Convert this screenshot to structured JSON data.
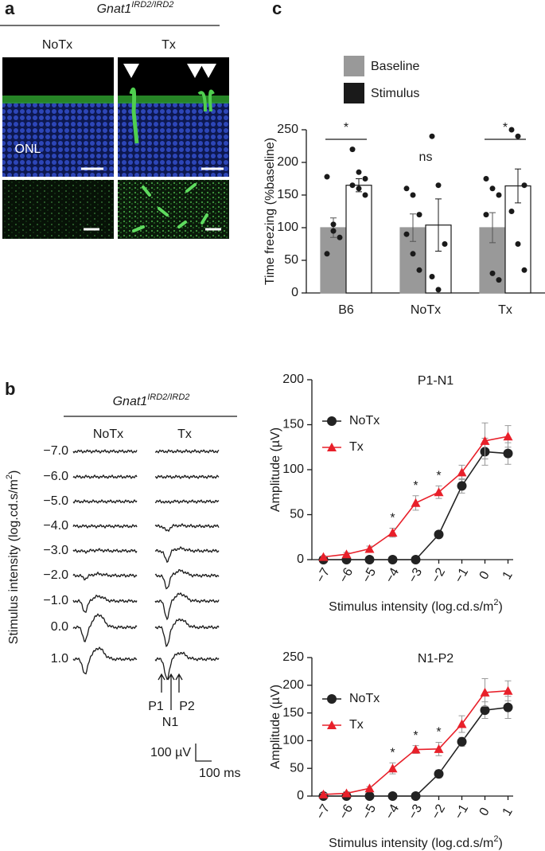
{
  "panels": {
    "a": {
      "label": "a",
      "gene": "Gnat1",
      "genotype": "IRD2/IRD2",
      "conditions": [
        "NoTx",
        "Tx"
      ],
      "layer": "ONL"
    },
    "b": {
      "label": "b",
      "gene": "Gnat1",
      "genotype": "IRD2/IRD2",
      "conditions": [
        "NoTx",
        "Tx"
      ],
      "intensities": [
        "−7.0",
        "−6.0",
        "−5.0",
        "−4.0",
        "−3.0",
        "−2.0",
        "−1.0",
        "0.0",
        "1.0"
      ],
      "ylabel": "Stimulus intensity (log.cd.s/m",
      "ylabel_sup": "2",
      "ylabel_end": ")",
      "peaks": [
        "P1",
        "N1",
        "P2"
      ],
      "scale_amplitude": "100 µV",
      "scale_time": "100 ms"
    },
    "c": {
      "label": "c"
    }
  },
  "chart_data": [
    {
      "type": "bar",
      "ylabel": "Time freezing (%baseline)",
      "categories": [
        "B6",
        "NoTx",
        "Tx"
      ],
      "series": [
        {
          "name": "Baseline",
          "color": "#999999",
          "values": [
            100,
            100,
            100
          ],
          "errors": [
            15,
            21,
            23
          ],
          "points": [
            [
              178,
              105,
              85,
              60,
              95
            ],
            [
              160,
              150,
              120,
              90,
              60,
              35
            ],
            [
              175,
              160,
              150,
              120,
              30,
              20
            ]
          ]
        },
        {
          "name": "Stimulus",
          "color": "#1a1a1a",
          "fill": "#ffffff",
          "values": [
            165,
            104,
            164
          ],
          "errors": [
            10,
            40,
            26
          ],
          "points": [
            [
              220,
              185,
              175,
              165,
              160,
              150
            ],
            [
              240,
              165,
              75,
              25,
              5
            ],
            [
              250,
              240,
              165,
              125,
              75,
              35
            ]
          ]
        }
      ],
      "ylim": [
        0,
        250
      ],
      "yticks": [
        0,
        50,
        100,
        150,
        200,
        250
      ],
      "significance": [
        {
          "label": "*",
          "bracket": true
        },
        {
          "label": "ns",
          "bracket": false
        },
        {
          "label": "*",
          "bracket": true
        }
      ]
    },
    {
      "type": "line",
      "title": "P1-N1",
      "ylabel": "Amplitude (µV)",
      "xlabel": "Stimulus intensity (log.cd.s/m",
      "xlabel_sup": "2",
      "xlabel_end": ")",
      "x": [
        -7,
        -6,
        -5,
        -4,
        -3,
        -2,
        -1,
        0,
        1
      ],
      "series": [
        {
          "name": "NoTx",
          "color": "#222222",
          "marker": "circle",
          "values": [
            0,
            0,
            0,
            0,
            0,
            28,
            82,
            120,
            118
          ],
          "errors": [
            0,
            0,
            0,
            0,
            0,
            3,
            8,
            15,
            12
          ]
        },
        {
          "name": "Tx",
          "color": "#e8202a",
          "marker": "triangle",
          "values": [
            3,
            6,
            12,
            30,
            63,
            75,
            97,
            132,
            137
          ],
          "errors": [
            1,
            2,
            3,
            5,
            8,
            7,
            8,
            20,
            12
          ]
        }
      ],
      "xlim": [
        -7.5,
        1.5
      ],
      "xticks": [
        {
          "value": -7,
          "label": "−7"
        },
        {
          "value": -6,
          "label": "−6"
        },
        {
          "value": -5,
          "label": "−5"
        },
        {
          "value": -4,
          "label": "−4"
        },
        {
          "value": -3,
          "label": "−3"
        },
        {
          "value": -2,
          "label": "−2"
        },
        {
          "value": -1,
          "label": "−1"
        },
        0,
        1
      ],
      "ylim": [
        0,
        200
      ],
      "yticks": [
        0,
        50,
        100,
        150,
        200
      ],
      "significance": [
        null,
        null,
        null,
        "*",
        "*",
        "*",
        null,
        null,
        null
      ]
    },
    {
      "type": "line",
      "title": "N1-P2",
      "ylabel": "Amplitude (µV)",
      "xlabel": "Stimulus intensity (log.cd.s/m",
      "xlabel_sup": "2",
      "xlabel_end": ")",
      "x": [
        -7,
        -6,
        -5,
        -4,
        -3,
        -2,
        -1,
        0,
        1
      ],
      "series": [
        {
          "name": "NoTx",
          "color": "#222222",
          "marker": "circle",
          "values": [
            0,
            0,
            0,
            0,
            0,
            40,
            98,
            155,
            160
          ],
          "errors": [
            0,
            0,
            0,
            0,
            0,
            7,
            8,
            15,
            20
          ]
        },
        {
          "name": "Tx",
          "color": "#e8202a",
          "marker": "triangle",
          "values": [
            3,
            5,
            14,
            50,
            84,
            85,
            130,
            187,
            190
          ],
          "errors": [
            2,
            3,
            3,
            10,
            7,
            12,
            15,
            25,
            18
          ]
        }
      ],
      "xlim": [
        -7.5,
        1.5
      ],
      "xticks": [
        {
          "value": -7,
          "label": "−7"
        },
        {
          "value": -6,
          "label": "−6"
        },
        {
          "value": -5,
          "label": "−5"
        },
        {
          "value": -4,
          "label": "−4"
        },
        {
          "value": -3,
          "label": "−3"
        },
        {
          "value": -2,
          "label": "−2"
        },
        {
          "value": -1,
          "label": "−1"
        },
        0,
        1
      ],
      "ylim": [
        0,
        250
      ],
      "yticks": [
        0,
        50,
        100,
        150,
        200,
        250
      ],
      "significance": [
        null,
        null,
        null,
        "*",
        "*",
        "*",
        null,
        null,
        null
      ]
    }
  ]
}
